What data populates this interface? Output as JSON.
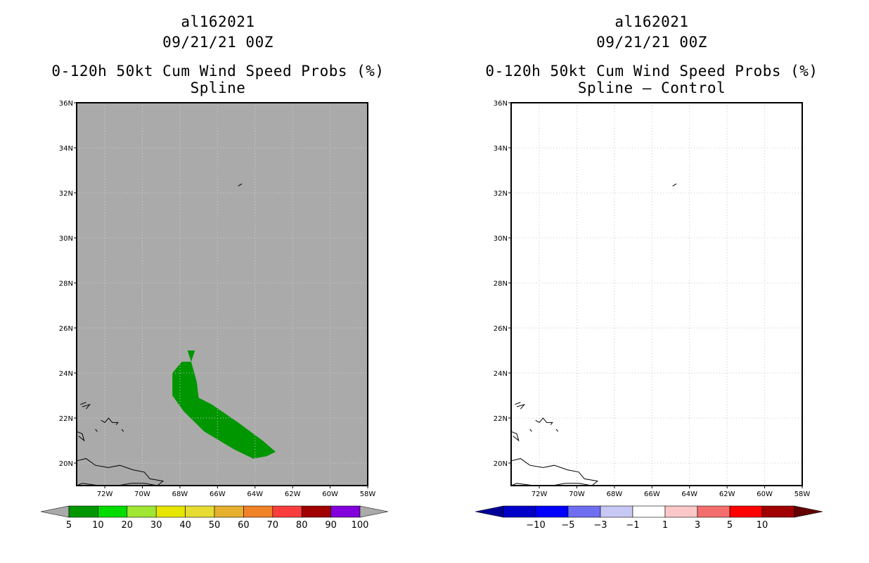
{
  "left_panel": {
    "title_line1": "al162021",
    "title_line2": "09/21/21 00Z",
    "title_line3": "0-120h 50kt Cum Wind Speed Probs (%)",
    "title_line4": "Spline",
    "background_color": "#aaaaaa"
  },
  "right_panel": {
    "title_line1": "al162021",
    "title_line2": "09/21/21 00Z",
    "title_line3": "0-120h 50kt Cum Wind Speed Probs (%)",
    "title_line4": "Spline – Control",
    "background_color": "#ffffff"
  },
  "chart_data": [
    {
      "type": "heatmap",
      "title": "0-120h 50kt Cum Wind Speed Probs (%)",
      "subtitle": "Spline",
      "xlim": [
        -73.5,
        -58
      ],
      "ylim": [
        19,
        36
      ],
      "x_ticks": [
        -72,
        -70,
        -68,
        -66,
        -64,
        -62,
        -60,
        -58
      ],
      "x_tick_labels": [
        "72W",
        "70W",
        "68W",
        "66W",
        "64W",
        "62W",
        "60W",
        "58W"
      ],
      "y_ticks": [
        20,
        22,
        24,
        26,
        28,
        30,
        32,
        34,
        36
      ],
      "y_tick_labels": [
        "20N",
        "22N",
        "24N",
        "26N",
        "28N",
        "30N",
        "32N",
        "34N",
        "36N"
      ],
      "grid": true,
      "colorbar": {
        "labels": [
          "5",
          "10",
          "20",
          "30",
          "40",
          "50",
          "60",
          "70",
          "80",
          "90",
          "100"
        ],
        "colors": [
          "#009600",
          "#00dc00",
          "#a0e632",
          "#e6e600",
          "#e6dc32",
          "#e6af2d",
          "#f08228",
          "#fa3c3c",
          "#a00000",
          "#8200dc"
        ],
        "end_color": "#aaaaaa"
      },
      "regions": [
        {
          "level": "5-10",
          "color": "#009600",
          "polygon_lonlat": [
            [
              -67.9,
              24.5
            ],
            [
              -67.4,
              24.5
            ],
            [
              -67.1,
              23.6
            ],
            [
              -67.0,
              22.9
            ],
            [
              -66.3,
              22.6
            ],
            [
              -64.9,
              21.8
            ],
            [
              -63.6,
              21.0
            ],
            [
              -62.9,
              20.5
            ],
            [
              -63.4,
              20.3
            ],
            [
              -64.1,
              20.2
            ],
            [
              -65.1,
              20.6
            ],
            [
              -66.7,
              21.4
            ],
            [
              -67.8,
              22.3
            ],
            [
              -68.4,
              23.0
            ],
            [
              -68.4,
              24.0
            ]
          ]
        },
        {
          "level": "5-10",
          "color": "#009600",
          "polygon_lonlat": [
            [
              -67.6,
              25.0
            ],
            [
              -67.2,
              25.0
            ],
            [
              -67.4,
              24.5
            ]
          ]
        }
      ]
    },
    {
      "type": "heatmap",
      "title": "0-120h 50kt Cum Wind Speed Probs (%)",
      "subtitle": "Spline – Control",
      "xlim": [
        -73.5,
        -58
      ],
      "ylim": [
        19,
        36
      ],
      "x_ticks": [
        -72,
        -70,
        -68,
        -66,
        -64,
        -62,
        -60,
        -58
      ],
      "x_tick_labels": [
        "72W",
        "70W",
        "68W",
        "66W",
        "64W",
        "62W",
        "60W",
        "58W"
      ],
      "y_ticks": [
        20,
        22,
        24,
        26,
        28,
        30,
        32,
        34,
        36
      ],
      "y_tick_labels": [
        "20N",
        "22N",
        "24N",
        "26N",
        "28N",
        "30N",
        "32N",
        "34N",
        "36N"
      ],
      "grid": true,
      "colorbar": {
        "labels": [
          "−10",
          "−5",
          "−3",
          "−1",
          "1",
          "3",
          "5",
          "10"
        ],
        "colors": [
          "#0000c8",
          "#0000ff",
          "#6e6ef0",
          "#c8c8f5",
          "#ffffff",
          "#fac8c8",
          "#f56e6e",
          "#ff0000",
          "#a00000"
        ],
        "end_color_low": "#000096",
        "end_color_high": "#640000"
      },
      "regions": []
    }
  ]
}
